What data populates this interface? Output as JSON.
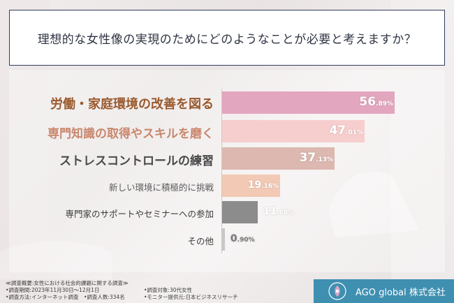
{
  "question": "理想的な女性像の実現のためにどのようなことが必要と考えますか？",
  "chart_data": {
    "type": "bar",
    "orientation": "horizontal",
    "categories": [
      "労働・家庭環境の改善を図る",
      "専門知識の取得やスキルを磨く",
      "ストレスコントロールの練習",
      "新しい環境に積極的に挑戦",
      "専門家のサポートやセミナーへの参加",
      "その他"
    ],
    "values": [
      56.89,
      47.01,
      37.13,
      19.16,
      11.68,
      0.9
    ],
    "value_labels": [
      {
        "int": "56",
        "dec": ".89%"
      },
      {
        "int": "47",
        "dec": ".01%"
      },
      {
        "int": "37",
        "dec": ".13%"
      },
      {
        "int": "19",
        "dec": ".16%"
      },
      {
        "int": "11",
        "dec": ".68%"
      },
      {
        "int": "0",
        "dec": ".90%"
      }
    ],
    "unit": "%",
    "xlim": [
      0,
      60
    ],
    "colors": [
      "#e3a6bf",
      "#f7cece",
      "#dcb8b0",
      "#f2c9b4",
      "#8c8c8c",
      "#c8c8c8"
    ],
    "label_colors": [
      "#9a5a2e",
      "#c9876d",
      "#4a4a4a",
      "#5a5a5a",
      "#3a3a3a",
      "#3a3a3a"
    ]
  },
  "footer": {
    "title": "≪調査概要:女性における社会的課題に関する調査≫",
    "left": [
      "•調査期間:2023年11月30日〜12月1日",
      "•調査方法:インターネット調査　•調査人数:334名"
    ],
    "right": [
      "•調査対象:30代女性",
      "•モニター提供元:日本ビジネスリサーチ"
    ]
  },
  "brand": {
    "name": "AGO global 株式会社",
    "color": "#3f8fb1"
  }
}
